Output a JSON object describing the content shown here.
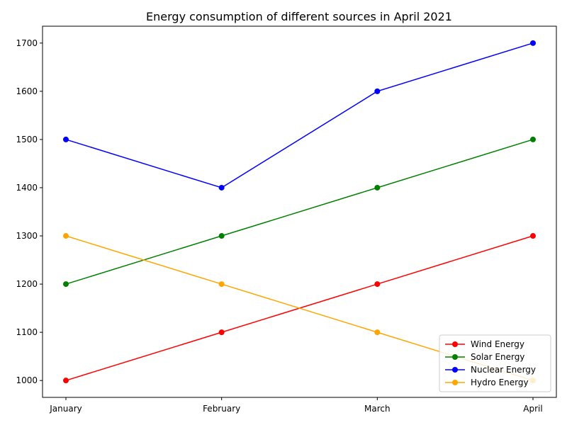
{
  "chart_data": {
    "type": "line",
    "title": "Energy consumption of different sources in April 2021",
    "xlabel": "",
    "ylabel": "",
    "categories": [
      "January",
      "February",
      "March",
      "April"
    ],
    "ylim": [
      965,
      1735
    ],
    "yticks": [
      1000,
      1100,
      1200,
      1300,
      1400,
      1500,
      1600,
      1700
    ],
    "grid": false,
    "legend_position": "bottom-right",
    "series": [
      {
        "name": "Wind Energy",
        "color": "#ff0000",
        "values": [
          1000,
          1100,
          1200,
          1300
        ]
      },
      {
        "name": "Solar Energy",
        "color": "#008000",
        "values": [
          1200,
          1300,
          1400,
          1500
        ]
      },
      {
        "name": "Nuclear Energy",
        "color": "#0000ff",
        "values": [
          1500,
          1400,
          1600,
          1700
        ]
      },
      {
        "name": "Hydro Energy",
        "color": "#ffa500",
        "values": [
          1300,
          1200,
          1100,
          1000
        ]
      }
    ]
  }
}
